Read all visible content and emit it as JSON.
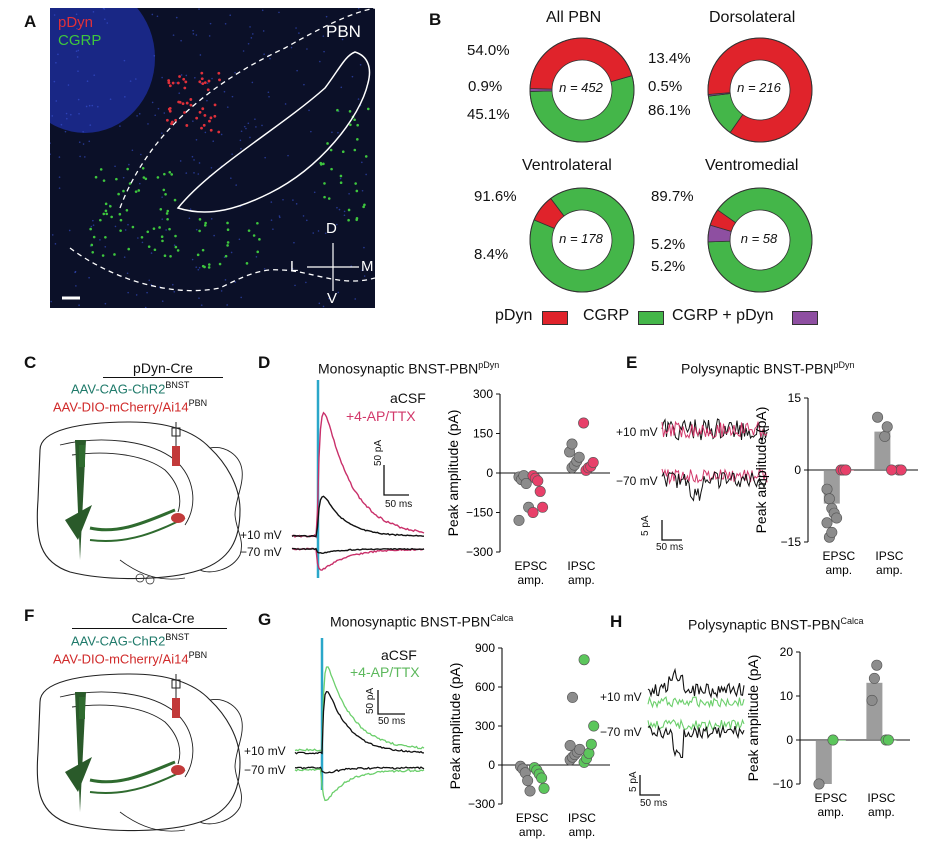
{
  "panels": {
    "A": "A",
    "B": "B",
    "C": "C",
    "D": "D",
    "E": "E",
    "F": "F",
    "G": "G",
    "H": "H"
  },
  "panel_a": {
    "legend_pdyn": "pDyn",
    "legend_cgrp": "CGRP",
    "region_label": "PBN",
    "compass": {
      "d": "D",
      "v": "V",
      "l": "L",
      "m": "M"
    },
    "colors": {
      "pdyn": "#e0303a",
      "cgrp": "#3ec63e",
      "background": "#0b1028"
    }
  },
  "panel_b": {
    "donuts": [
      {
        "title": "All PBN",
        "n_label": "n = 452",
        "pcts": [
          "54.0%",
          "0.9%",
          "45.1%"
        ],
        "fractions": {
          "cgrp": 0.54,
          "both": 0.009,
          "pdyn": 0.451
        }
      },
      {
        "title": "Dorsolateral",
        "n_label": "n = 216",
        "pcts": [
          "13.4%",
          "0.5%",
          "86.1%"
        ],
        "fractions": {
          "cgrp": 0.134,
          "both": 0.005,
          "pdyn": 0.861
        }
      },
      {
        "title": "Ventrolateral",
        "n_label": "n = 178",
        "pcts": [
          "91.6%",
          "8.4%"
        ],
        "fractions": {
          "cgrp": 0.916,
          "both": 0.0,
          "pdyn": 0.084
        }
      },
      {
        "title": "Ventromedial",
        "n_label": "n = 58",
        "pcts": [
          "89.7%",
          "5.2%",
          "5.2%"
        ],
        "fractions": {
          "cgrp": 0.897,
          "both": 0.052,
          "pdyn": 0.052
        }
      }
    ],
    "legend": [
      {
        "label": "pDyn",
        "color": "#e0232b"
      },
      {
        "label": "CGRP",
        "color": "#44b649"
      },
      {
        "label": "CGRP + pDyn",
        "color": "#8e4fa1"
      }
    ]
  },
  "panel_c": {
    "title": "pDyn-Cre",
    "virus1": "AAV-CAG-ChR2",
    "virus1_sup": "BNST",
    "virus2": "AAV-DIO-mCherry/Ai14",
    "virus2_sup": "PBN"
  },
  "panel_f": {
    "title": "Calca-Cre",
    "virus1": "AAV-CAG-ChR2",
    "virus1_sup": "BNST",
    "virus2": "AAV-DIO-mCherry/Ai14",
    "virus2_sup": "PBN"
  },
  "panel_d": {
    "title": "Monosynaptic BNST-PBN",
    "title_sup": "pDyn",
    "legend_acsf": "aCSF",
    "legend_drug": "+4-AP/TTX",
    "trace_labels": [
      "+10 mV",
      "−70 mV"
    ],
    "scale_y": "50 pA",
    "scale_x": "50 ms",
    "ylabel": "Peak amplitude (pA)",
    "yticks": [
      "300",
      "150",
      "0",
      "−150",
      "−300"
    ],
    "xcats": [
      "EPSC amp.",
      "IPSC amp."
    ]
  },
  "panel_e": {
    "title": "Polysynaptic BNST-PBN",
    "title_sup": "pDyn",
    "trace_labels": [
      "+10 mV",
      "−70 mV"
    ],
    "scale_y": "5 pA",
    "scale_x": "50 ms",
    "ylabel": "Peak amplitude (pA)",
    "yticks": [
      "15",
      "0",
      "−15"
    ],
    "xcats": [
      "EPSC amp.",
      "IPSC amp."
    ]
  },
  "panel_g": {
    "title": "Monosynaptic BNST-PBN",
    "title_sup": "Calca",
    "legend_acsf": "aCSF",
    "legend_drug": "+4-AP/TTX",
    "trace_labels": [
      "+10 mV",
      "−70 mV"
    ],
    "scale_y": "50 pA",
    "scale_x": "50 ms",
    "ylabel": "Peak amplitude (pA)",
    "yticks": [
      "900",
      "600",
      "300",
      "0",
      "−300"
    ],
    "xcats": [
      "EPSC amp.",
      "IPSC amp."
    ]
  },
  "panel_h": {
    "title": "Polysynaptic BNST-PBN",
    "title_sup": "Calca",
    "trace_labels": [
      "+10 mV",
      "−70 mV"
    ],
    "scale_y": "5 pA",
    "scale_x": "50 ms",
    "ylabel": "Peak amplitude (pA)",
    "yticks": [
      "20",
      "10",
      "0",
      "−10"
    ],
    "xcats": [
      "EPSC amp.",
      "IPSC amp."
    ]
  },
  "chart_data": [
    {
      "type": "pie",
      "title": "All PBN",
      "categories": [
        "CGRP",
        "CGRP + pDyn",
        "pDyn"
      ],
      "values": [
        54.0,
        0.9,
        45.1
      ]
    },
    {
      "type": "pie",
      "title": "Dorsolateral",
      "categories": [
        "CGRP",
        "CGRP + pDyn",
        "pDyn"
      ],
      "values": [
        13.4,
        0.5,
        86.1
      ]
    },
    {
      "type": "pie",
      "title": "Ventrolateral",
      "categories": [
        "CGRP",
        "pDyn"
      ],
      "values": [
        91.6,
        8.4
      ]
    },
    {
      "type": "pie",
      "title": "Ventromedial",
      "categories": [
        "CGRP",
        "CGRP + pDyn",
        "pDyn"
      ],
      "values": [
        89.7,
        5.2,
        5.2
      ]
    },
    {
      "type": "scatter",
      "panel": "D",
      "ylabel": "Peak amplitude (pA)",
      "ylim": [
        -300,
        300
      ],
      "categories": [
        "EPSC amp.",
        "IPSC amp."
      ],
      "series": [
        {
          "name": "aCSF",
          "color": "#8c8c8c",
          "points": [
            [
              0,
              -15
            ],
            [
              0,
              -25
            ],
            [
              0,
              -10
            ],
            [
              0,
              -40
            ],
            [
              0,
              -130
            ],
            [
              0,
              -180
            ],
            [
              1,
              20
            ],
            [
              1,
              30
            ],
            [
              1,
              45
            ],
            [
              1,
              60
            ],
            [
              1,
              80
            ],
            [
              1,
              110
            ]
          ]
        },
        {
          "name": "+4-AP/TTX",
          "color": "#e8406a",
          "points": [
            [
              0,
              -10
            ],
            [
              0,
              -20
            ],
            [
              0,
              -30
            ],
            [
              0,
              -70
            ],
            [
              0,
              -130
            ],
            [
              0,
              -150
            ],
            [
              1,
              10
            ],
            [
              1,
              20
            ],
            [
              1,
              25
            ],
            [
              1,
              40
            ],
            [
              1,
              190
            ]
          ]
        }
      ]
    },
    {
      "type": "bar",
      "panel": "E",
      "ylabel": "Peak amplitude (pA)",
      "ylim": [
        -15,
        15
      ],
      "categories": [
        "EPSC amp.",
        "IPSC amp."
      ],
      "series": [
        {
          "name": "aCSF",
          "color": "#8c8c8c",
          "values": [
            -7,
            8
          ],
          "points": [
            [
              0,
              -4
            ],
            [
              0,
              -6
            ],
            [
              0,
              -8
            ],
            [
              0,
              -9
            ],
            [
              0,
              -10
            ],
            [
              0,
              -11
            ],
            [
              0,
              -14
            ],
            [
              0,
              -13
            ],
            [
              1,
              7
            ],
            [
              1,
              9
            ],
            [
              1,
              11
            ]
          ]
        },
        {
          "name": "+4-AP/TTX",
          "color": "#e8406a",
          "values": [
            0,
            0
          ],
          "points": [
            [
              0,
              0
            ],
            [
              0,
              0
            ],
            [
              0,
              0
            ],
            [
              1,
              0
            ],
            [
              1,
              0
            ],
            [
              1,
              0
            ]
          ]
        }
      ]
    },
    {
      "type": "scatter",
      "panel": "G",
      "ylabel": "Peak amplitude (pA)",
      "ylim": [
        -300,
        900
      ],
      "categories": [
        "EPSC amp.",
        "IPSC amp."
      ],
      "series": [
        {
          "name": "aCSF",
          "color": "#8c8c8c",
          "points": [
            [
              0,
              -10
            ],
            [
              0,
              -30
            ],
            [
              0,
              -60
            ],
            [
              0,
              -120
            ],
            [
              0,
              -200
            ],
            [
              1,
              40
            ],
            [
              1,
              60
            ],
            [
              1,
              80
            ],
            [
              1,
              100
            ],
            [
              1,
              120
            ],
            [
              1,
              150
            ],
            [
              1,
              520
            ]
          ]
        },
        {
          "name": "+4-AP/TTX",
          "color": "#5cc65c",
          "points": [
            [
              0,
              -20
            ],
            [
              0,
              -40
            ],
            [
              0,
              -70
            ],
            [
              0,
              -100
            ],
            [
              0,
              -180
            ],
            [
              1,
              20
            ],
            [
              1,
              50
            ],
            [
              1,
              90
            ],
            [
              1,
              160
            ],
            [
              1,
              300
            ],
            [
              1,
              810
            ]
          ]
        }
      ]
    },
    {
      "type": "bar",
      "panel": "H",
      "ylabel": "Peak amplitude (pA)",
      "ylim": [
        -10,
        20
      ],
      "categories": [
        "EPSC amp.",
        "IPSC amp."
      ],
      "series": [
        {
          "name": "aCSF",
          "color": "#8c8c8c",
          "values": [
            -10,
            13
          ],
          "points": [
            [
              0,
              -10
            ],
            [
              1,
              9
            ],
            [
              1,
              14
            ],
            [
              1,
              17
            ]
          ]
        },
        {
          "name": "+4-AP/TTX",
          "color": "#5cc65c",
          "values": [
            0,
            0
          ],
          "points": [
            [
              0,
              0
            ],
            [
              1,
              0
            ],
            [
              1,
              0
            ]
          ]
        }
      ]
    }
  ]
}
